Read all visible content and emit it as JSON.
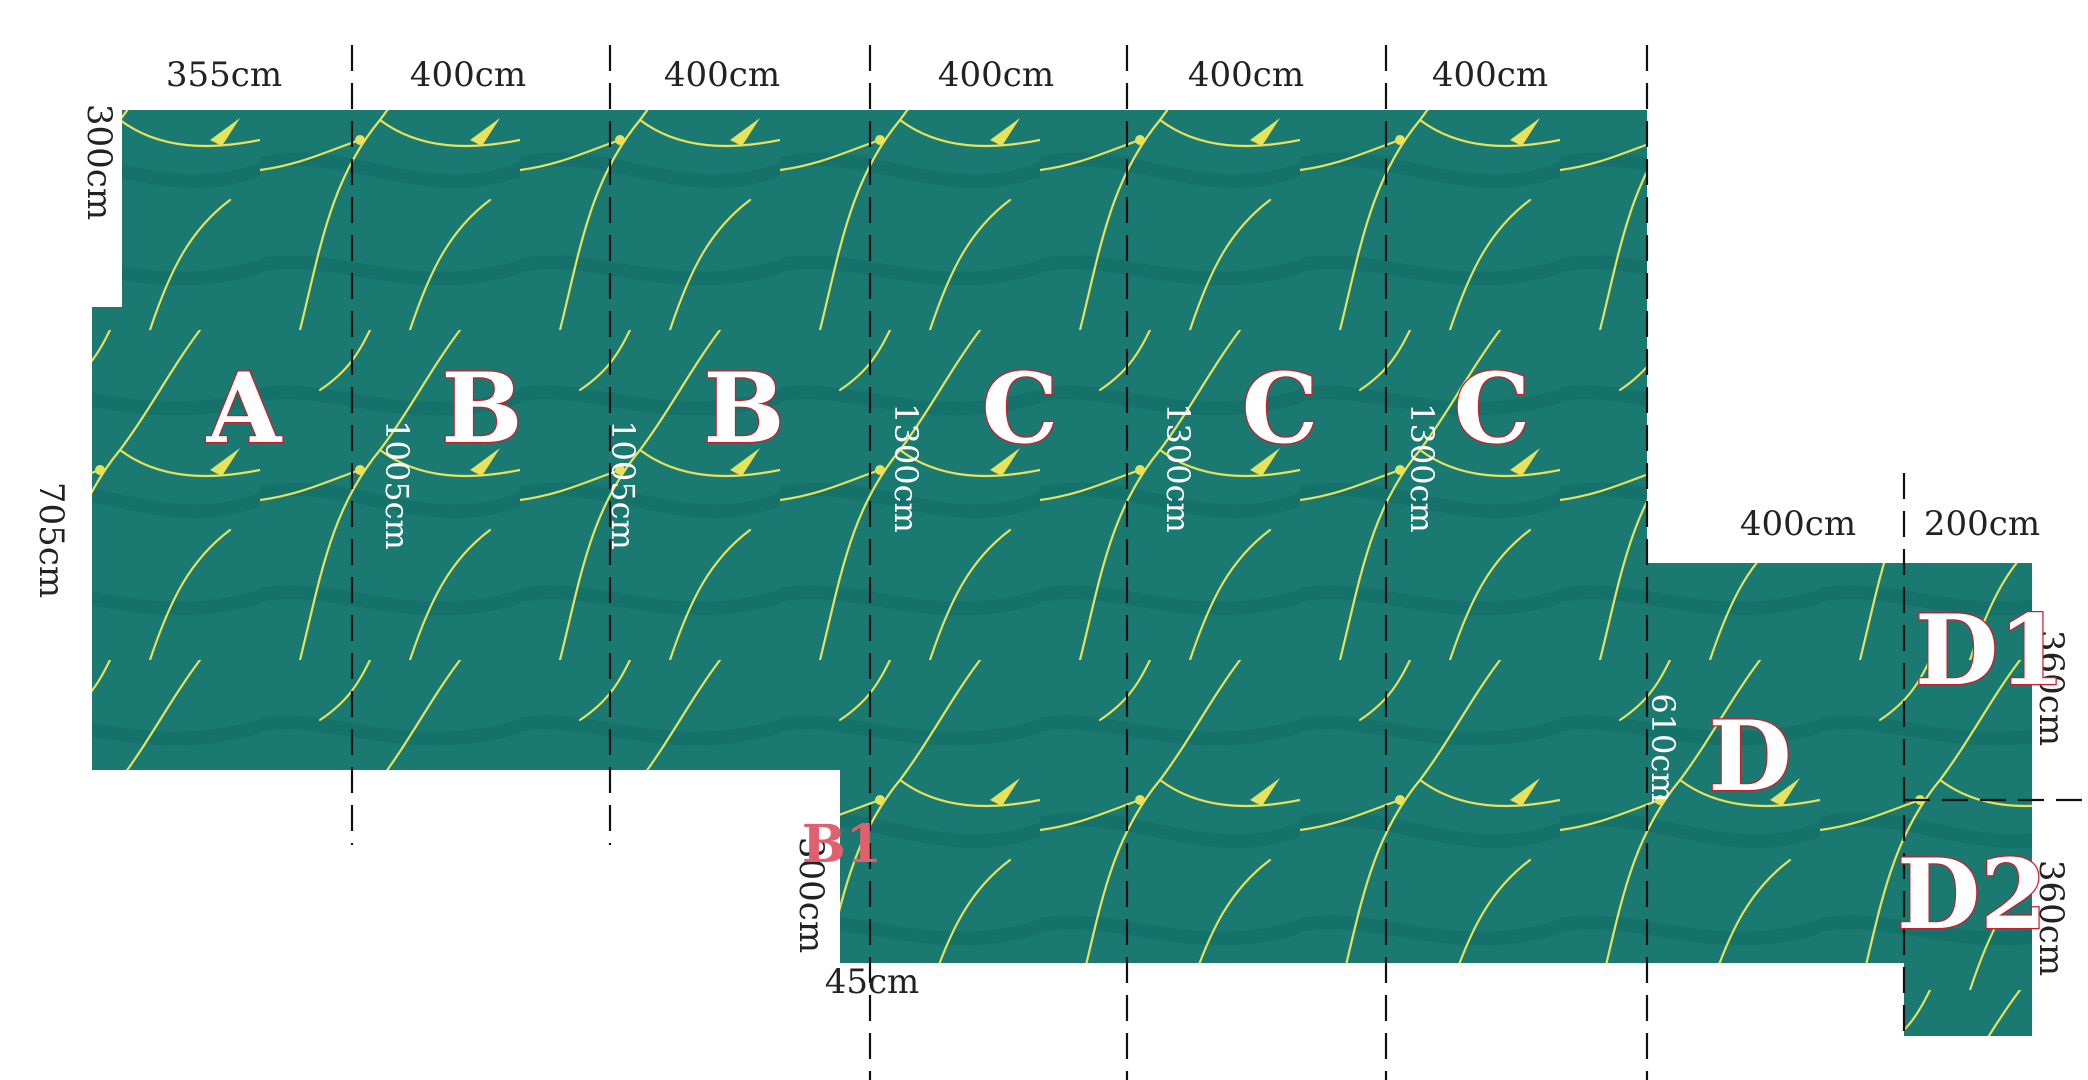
{
  "colors": {
    "panel": "#1a7a71",
    "panel_dark": "#125f58",
    "vein": "#e8e25a",
    "label_outline": "#d01a2a",
    "text": "#222222"
  },
  "top_widths": [
    "355cm",
    "400cm",
    "400cm",
    "400cm",
    "400cm",
    "400cm"
  ],
  "right_widths": [
    "400cm",
    "200cm"
  ],
  "heights": {
    "a_top": "300cm",
    "a_total": "705cm",
    "b1": "1005cm",
    "b2": "1005cm",
    "c1": "1300cm",
    "c2": "1300cm",
    "c3": "1300cm",
    "d": "610cm",
    "d1": "360cm",
    "d2": "360cm",
    "b1_small": "300cm"
  },
  "b1_width": "45cm",
  "panel_labels": {
    "a": "A",
    "b1": "B",
    "b2": "B",
    "c1": "C",
    "c2": "C",
    "c3": "C",
    "d": "D",
    "d1": "D1",
    "d2": "D2",
    "b1_strip": "B1"
  }
}
